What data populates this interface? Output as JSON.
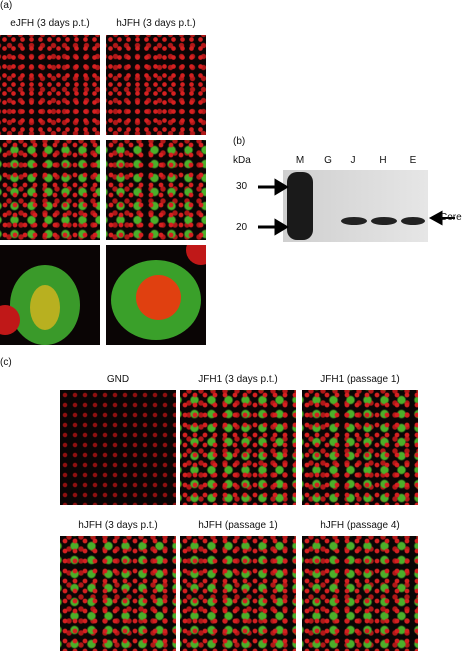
{
  "panel_a": {
    "label": "(a)",
    "columns": [
      "eJFH (3 days p.t.)",
      "hJFH (3 days p.t.)"
    ]
  },
  "panel_b": {
    "label": "(b)",
    "unit": "kDa",
    "lanes": [
      "M",
      "G",
      "J",
      "H",
      "E"
    ],
    "markers": [
      "30",
      "20"
    ],
    "band_label": "Core"
  },
  "panel_c": {
    "label": "(c)",
    "titles": [
      "GND",
      "JFH1 (3 days p.t.)",
      "JFH1 (passage 1)",
      "hJFH (3 days p.t.)",
      "hJFH (passage 1)",
      "hJFH (passage 4)"
    ]
  }
}
